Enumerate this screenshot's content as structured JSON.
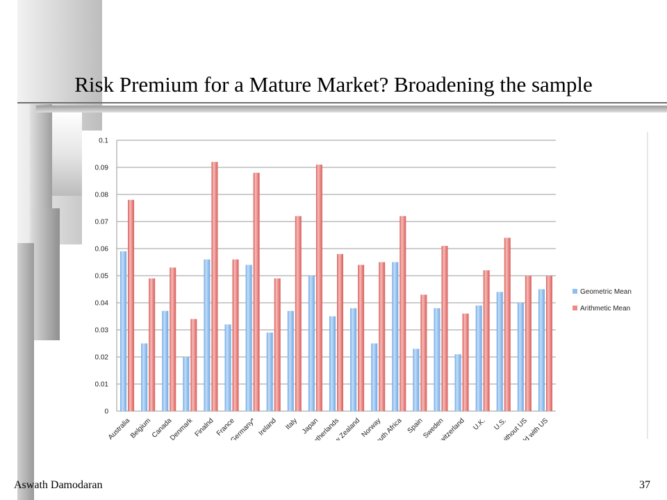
{
  "slide": {
    "title": "Risk Premium for a Mature Market? Broadening the sample",
    "footer_author": "Aswath Damodaran",
    "page_number": "37"
  },
  "colors": {
    "geometric": "#8fbff0",
    "arithmetic": "#ee8a86",
    "grid": "#9a9a9a",
    "axis_text": "#222222"
  },
  "chart_data": {
    "type": "bar",
    "title": "",
    "xlabel": "",
    "ylabel": "",
    "ylim": [
      0,
      0.1
    ],
    "yticks": [
      "0",
      "0.01",
      "0.02",
      "0.03",
      "0.04",
      "0.05",
      "0.06",
      "0.07",
      "0.08",
      "0.09",
      "0.1"
    ],
    "grid": true,
    "legend_position": "right",
    "categories": [
      "Australia",
      "Belgium",
      "Canada",
      "Denmark",
      "Finalnd",
      "France",
      "Germany*",
      "Ireland",
      "Italy",
      "Japan",
      "Netherlands",
      "New Zealand",
      "Norway",
      "South Africa",
      "Spain",
      "Sweden",
      "Switzerland",
      "U.K.",
      "U.S.",
      "World without US",
      "World with US"
    ],
    "series": [
      {
        "name": "Geometric Mean",
        "values": [
          0.059,
          0.025,
          0.037,
          0.02,
          0.056,
          0.032,
          0.054,
          0.029,
          0.037,
          0.05,
          0.035,
          0.038,
          0.025,
          0.055,
          0.023,
          0.038,
          0.021,
          0.039,
          0.044,
          0.04,
          0.045
        ]
      },
      {
        "name": "Arithmetic Mean",
        "values": [
          0.078,
          0.049,
          0.053,
          0.034,
          0.092,
          0.056,
          0.088,
          0.049,
          0.072,
          0.091,
          0.058,
          0.054,
          0.055,
          0.072,
          0.043,
          0.061,
          0.036,
          0.052,
          0.064,
          0.05,
          0.05
        ]
      }
    ]
  }
}
